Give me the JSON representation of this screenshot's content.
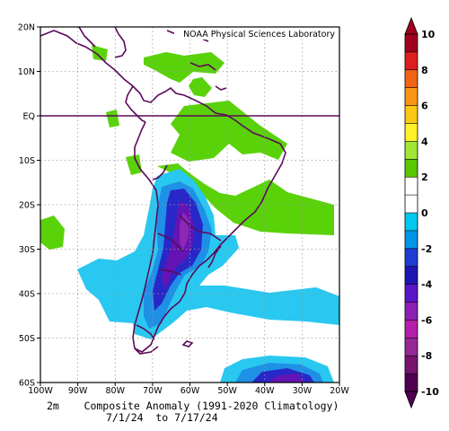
{
  "credit": "NOAA Physical Sciences Laboratory",
  "caption": {
    "line1": "2m    Composite Anomaly (1991-2020 Climatology)",
    "line2": "7/1/24  to 7/17/24"
  },
  "map": {
    "lat_labels": [
      "20N",
      "10N",
      "EQ",
      "10S",
      "20S",
      "30S",
      "40S",
      "50S",
      "60S"
    ],
    "lon_labels": [
      "100W",
      "90W",
      "80W",
      "70W",
      "60W",
      "50W",
      "40W",
      "30W",
      "20W"
    ],
    "lat_range": [
      -60,
      20
    ],
    "lon_range": [
      -100,
      -20
    ],
    "grid": "dotted"
  },
  "colorbar": {
    "labels": [
      "10",
      "8",
      "6",
      "4",
      "2",
      "0",
      "-2",
      "-4",
      "-6",
      "-8",
      "-10"
    ],
    "colors": [
      "#a0001e",
      "#dc1e1e",
      "#f06414",
      "#fa9614",
      "#fac814",
      "#fff028",
      "#a0e632",
      "#5ac800",
      "#ffffff",
      "#ffffff",
      "#00c8f0",
      "#0096e6",
      "#1e3cd2",
      "#1e14b4",
      "#5a14c8",
      "#8c1eb4",
      "#b41eaa",
      "#962896",
      "#78146e",
      "#500050"
    ]
  },
  "colors": {
    "coast": "#5a0a5a",
    "equator": "#5a0a5a",
    "green": "#5ad20a",
    "light_blue": "#28c8f0",
    "blue": "#1e90e6",
    "dark_blue": "#2828c8",
    "purple": "#6414b4",
    "magenta": "#8c28b4"
  }
}
